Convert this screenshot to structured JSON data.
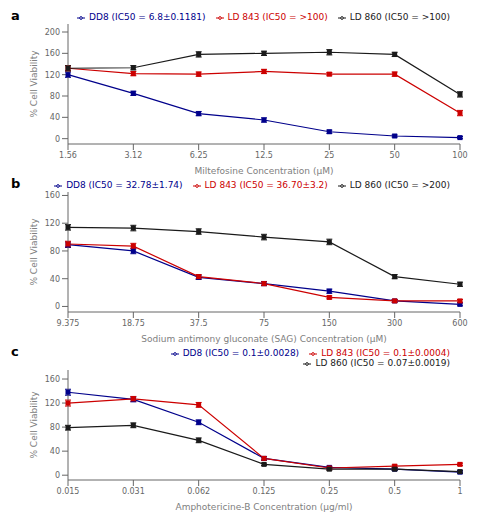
{
  "chart_data": [
    {
      "type": "line",
      "title": "a",
      "x_label": "Miltefosine Concentration (μM)",
      "y_label": "% Cell Viability",
      "categories": [
        "1.56",
        "3.12",
        "6.25",
        "12.5",
        "25",
        "50",
        "100"
      ],
      "ylim": [
        -10,
        215
      ],
      "yticks": [
        0,
        40,
        80,
        120,
        160,
        200
      ],
      "grid": false,
      "legend": "upper right",
      "series": [
        {
          "name": "DD8  (IC50 = 6.8±0.1181)",
          "color": "#00008B",
          "marker": "square",
          "values": [
            120,
            85,
            47,
            35,
            13,
            5,
            2
          ],
          "yerr": [
            5,
            4,
            4,
            4,
            3,
            2,
            2
          ]
        },
        {
          "name": "LD 843 (IC50 = >100)",
          "color": "#CC0000",
          "marker": "square",
          "values": [
            132,
            122,
            121,
            126,
            121,
            121,
            48
          ],
          "yerr": [
            5,
            4,
            4,
            4,
            3,
            4,
            5
          ]
        },
        {
          "name": "LD 860 (IC50 = >100)",
          "color": "#1a1a1a",
          "marker": "square",
          "values": [
            132,
            133,
            158,
            160,
            162,
            158,
            83
          ],
          "yerr": [
            5,
            4,
            5,
            4,
            5,
            4,
            5
          ]
        }
      ]
    },
    {
      "type": "line",
      "title": "b",
      "x_label": "Sodium antimony gluconate (SAG)  Concentration (μM)",
      "y_label": "% Cell Viability",
      "categories": [
        "9.375",
        "18.75",
        "37.5",
        "75",
        "150",
        "300",
        "600"
      ],
      "ylim": [
        -8,
        165
      ],
      "yticks": [
        0,
        40,
        80,
        120,
        160
      ],
      "grid": false,
      "legend": "upper right",
      "series": [
        {
          "name": "DD8  (IC50 = 32.78±1.74)",
          "color": "#00008B",
          "marker": "square",
          "values": [
            89,
            80,
            42,
            33,
            22,
            8,
            3
          ],
          "yerr": [
            4,
            4,
            3,
            3,
            3,
            2,
            2
          ]
        },
        {
          "name": "LD 843 (IC50 = 36.70±3.2)",
          "color": "#CC0000",
          "marker": "square",
          "values": [
            90,
            87,
            43,
            33,
            13,
            8,
            8
          ],
          "yerr": [
            4,
            4,
            3,
            3,
            2,
            2,
            2
          ]
        },
        {
          "name": "LD 860 (IC50 = >200)",
          "color": "#1a1a1a",
          "marker": "square",
          "values": [
            114,
            113,
            108,
            100,
            93,
            43,
            32
          ],
          "yerr": [
            4,
            4,
            4,
            4,
            4,
            3,
            3
          ]
        }
      ]
    },
    {
      "type": "line",
      "title": "c",
      "x_label": "Amphotericine-B  Concentration (μg/ml)",
      "y_label": "% Cell Viability",
      "categories": [
        "0.015",
        "0.031",
        "0.062",
        "0.125",
        "0.25",
        "0.5",
        "1"
      ],
      "ylim": [
        -8,
        175
      ],
      "yticks": [
        0,
        40,
        80,
        120,
        160
      ],
      "grid": false,
      "legend": "upper right",
      "series": [
        {
          "name": "DD8  (IC50 = 0.1±0.0028)",
          "color": "#00008B",
          "marker": "square",
          "values": [
            138,
            126,
            88,
            28,
            13,
            10,
            5
          ],
          "yerr": [
            5,
            4,
            4,
            3,
            2,
            2,
            2
          ]
        },
        {
          "name": "LD 843 (IC50 = 0.1±0.0004)",
          "color": "#CC0000",
          "marker": "square",
          "values": [
            120,
            127,
            117,
            28,
            12,
            15,
            18
          ],
          "yerr": [
            5,
            4,
            4,
            3,
            2,
            2,
            2
          ]
        },
        {
          "name": "LD 860 (IC50 = 0.07±0.0019)",
          "color": "#1a1a1a",
          "marker": "square",
          "values": [
            79,
            83,
            58,
            18,
            10,
            10,
            6
          ],
          "yerr": [
            4,
            4,
            4,
            2,
            2,
            2,
            2
          ]
        }
      ]
    }
  ]
}
